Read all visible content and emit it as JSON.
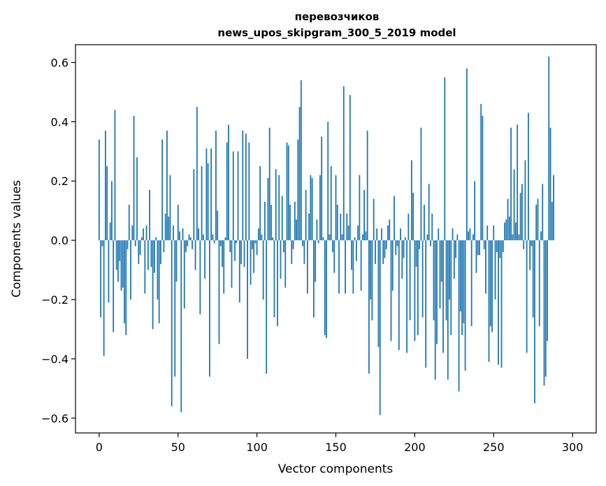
{
  "chart_data": {
    "type": "bar",
    "title_line1": "перевозчиков",
    "title_line2": "news_upos_skipgram_300_5_2019 model",
    "xlabel": "Vector components",
    "ylabel": "Components values",
    "xlim": [
      -15,
      315
    ],
    "ylim": [
      -0.65,
      0.66
    ],
    "xticks": [
      0,
      50,
      100,
      150,
      200,
      250,
      300
    ],
    "yticks": [
      0.6,
      0.4,
      0.2,
      0.0,
      -0.2,
      -0.4,
      -0.6
    ],
    "ytick_labels": [
      "0.6",
      "0.4",
      "0.2",
      "0.0",
      "−0.2",
      "−0.4",
      "−0.6"
    ],
    "bar_color": "#1f77b4",
    "values": [
      0.34,
      -0.26,
      -0.02,
      -0.39,
      0.37,
      0.25,
      -0.21,
      0.06,
      0.2,
      -0.31,
      0.44,
      -0.1,
      -0.14,
      -0.07,
      -0.17,
      -0.16,
      -0.28,
      -0.32,
      -0.03,
      0.12,
      -0.2,
      0.05,
      0.42,
      -0.02,
      0.28,
      -0.08,
      -0.05,
      0.01,
      0.04,
      -0.18,
      0.05,
      -0.1,
      0.17,
      -0.09,
      -0.3,
      -0.11,
      0.01,
      -0.2,
      -0.28,
      -0.08,
      0.34,
      -0.04,
      0.09,
      0.37,
      0.08,
      0.22,
      -0.56,
      0.05,
      -0.46,
      -0.14,
      0.12,
      0.03,
      -0.58,
      0.04,
      -0.23,
      -0.04,
      -0.02,
      0.02,
      0.01,
      -0.03,
      0.24,
      -0.1,
      0.45,
      0.04,
      -0.25,
      0.25,
      0.02,
      -0.13,
      0.31,
      0.26,
      -0.46,
      0.31,
      0.02,
      -0.01,
      0.37,
      0.1,
      -0.35,
      -0.02,
      -0.09,
      -0.18,
      0.01,
      0.33,
      0.39,
      -0.04,
      -0.16,
      0.3,
      -0.07,
      -0.01,
      0.3,
      -0.21,
      -0.08,
      0.37,
      -0.09,
      0.36,
      -0.4,
      0.33,
      -0.15,
      -0.03,
      -0.11,
      -0.01,
      -0.05,
      0.04,
      0.25,
      0.02,
      -0.2,
      0.13,
      -0.45,
      0.21,
      0.38,
      0.12,
      0.01,
      -0.26,
      0.24,
      -0.29,
      0.22,
      -0.13,
      0.15,
      -0.04,
      -0.16,
      0.33,
      0.32,
      0.12,
      -0.08,
      -0.03,
      0.13,
      0.07,
      0.34,
      0.45,
      0.54,
      -0.02,
      -0.08,
      0.17,
      -0.18,
      0.09,
      0.22,
      0.21,
      -0.26,
      -0.14,
      0.07,
      -0.01,
      0.22,
      0.35,
      0.01,
      -0.32,
      -0.33,
      0.4,
      0.02,
      0.25,
      -0.04,
      -0.11,
      0.22,
      0.12,
      -0.18,
      0.09,
      0.02,
      0.52,
      -0.18,
      0.09,
      0.05,
      0.49,
      -0.1,
      -0.18,
      0.01,
      -0.07,
      0.05,
      0.22,
      -0.17,
      0.02,
      0.17,
      0.03,
      0.37,
      -0.45,
      -0.2,
      -0.27,
      0.14,
      -0.08,
      0.04,
      -0.36,
      -0.59,
      0.04,
      -0.08,
      -0.06,
      -0.03,
      0.05,
      0.07,
      -0.34,
      -0.17,
      0.15,
      -0.05,
      -0.02,
      -0.37,
      0.04,
      -0.13,
      -0.06,
      0.01,
      -0.38,
      0.09,
      -0.27,
      0.27,
      0.16,
      -0.34,
      -0.09,
      -0.32,
      -0.03,
      0.38,
      -0.26,
      0.12,
      -0.43,
      0.02,
      0.19,
      -0.02,
      0.09,
      -0.27,
      -0.47,
      -0.35,
      0.04,
      -0.23,
      -0.14,
      -0.38,
      0.55,
      -0.27,
      -0.47,
      -0.2,
      -0.32,
      0.04,
      -0.13,
      -0.06,
      0.02,
      -0.51,
      -0.24,
      -0.32,
      -0.28,
      -0.44,
      0.58,
      0.03,
      0.04,
      -0.29,
      0.02,
      0.2,
      -0.11,
      -0.05,
      -0.05,
      0.46,
      0.42,
      -0.03,
      -0.18,
      0.05,
      -0.41,
      -0.29,
      -0.31,
      0.05,
      -0.2,
      -0.04,
      -0.42,
      -0.06,
      -0.43,
      -0.04,
      0.06,
      0.07,
      0.14,
      0.08,
      0.38,
      0.02,
      0.24,
      0.06,
      0.39,
      0.02,
      0.16,
      0.19,
      -0.03,
      0.27,
      -0.38,
      0.43,
      -0.1,
      -0.02,
      -0.26,
      -0.55,
      0.12,
      0.14,
      -0.29,
      0.03,
      0.19,
      -0.49,
      -0.46,
      -0.34,
      0.62,
      0.38,
      0.13,
      0.22
    ]
  }
}
